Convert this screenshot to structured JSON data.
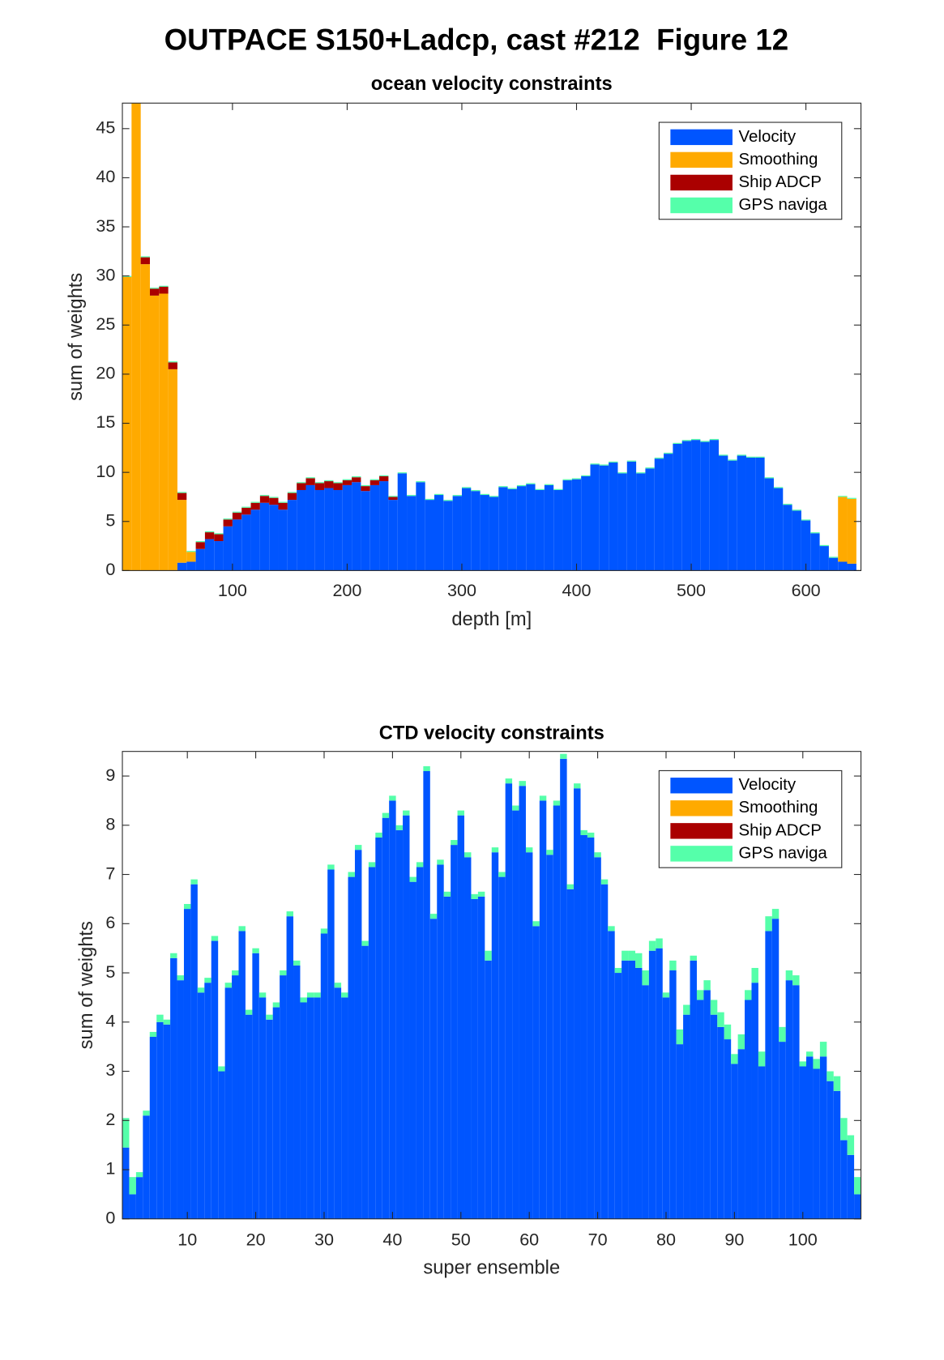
{
  "title": "OUTPACE S150+Ladcp, cast #212  Figure 12",
  "chart_data": [
    {
      "type": "bar",
      "stacked": true,
      "title": "ocean velocity constraints",
      "xlabel": "depth [m]",
      "ylabel": "sum of weights",
      "x": [
        8,
        16,
        24,
        32,
        40,
        48,
        56,
        64,
        72,
        80,
        88,
        96,
        104,
        112,
        120,
        128,
        136,
        144,
        152,
        160,
        168,
        176,
        184,
        192,
        200,
        208,
        216,
        224,
        232,
        240,
        248,
        256,
        264,
        272,
        280,
        288,
        296,
        304,
        312,
        320,
        328,
        336,
        344,
        352,
        360,
        368,
        376,
        384,
        392,
        400,
        408,
        416,
        424,
        432,
        440,
        448,
        456,
        464,
        472,
        480,
        488,
        496,
        504,
        512,
        520,
        528,
        536,
        544,
        552,
        560,
        568,
        576,
        584,
        592,
        600,
        608,
        616,
        624,
        632,
        640
      ],
      "xlim": [
        4,
        648
      ],
      "ylim": [
        0,
        47.6
      ],
      "xticks": [
        100,
        200,
        300,
        400,
        500,
        600
      ],
      "yticks": [
        0,
        5,
        10,
        15,
        20,
        25,
        30,
        35,
        40,
        45
      ],
      "legend": "northeast",
      "series": [
        {
          "name": "Velocity",
          "color": "#0055ff",
          "values": [
            0,
            0,
            0,
            0,
            0,
            0,
            0.8,
            0.9,
            2.2,
            3.2,
            3.0,
            4.5,
            5.2,
            5.7,
            6.2,
            6.9,
            6.7,
            6.2,
            7.2,
            8.2,
            8.7,
            8.2,
            8.4,
            8.2,
            8.7,
            9.0,
            8.1,
            8.7,
            9.1,
            7.2,
            9.9,
            7.6,
            9.0,
            7.2,
            7.7,
            7.1,
            7.6,
            8.4,
            8.1,
            7.7,
            7.5,
            8.5,
            8.3,
            8.6,
            8.8,
            8.2,
            8.7,
            8.2,
            9.2,
            9.3,
            9.6,
            10.8,
            10.7,
            11.0,
            9.9,
            11.1,
            9.9,
            10.4,
            11.4,
            11.9,
            12.9,
            13.2,
            13.3,
            13.1,
            13.3,
            11.7,
            11.2,
            11.7,
            11.5,
            11.5,
            9.4,
            8.4,
            6.7,
            6.1,
            5.1,
            3.8,
            2.5,
            1.3,
            0.9,
            0.7
          ]
        },
        {
          "name": "Smoothing",
          "color": "#ffaa00",
          "values": [
            29.9,
            47.9,
            31.2,
            28.0,
            28.2,
            20.5,
            6.4,
            1.0,
            0,
            0,
            0,
            0,
            0,
            0,
            0,
            0,
            0,
            0,
            0,
            0,
            0,
            0,
            0,
            0,
            0,
            0,
            0,
            0,
            0,
            0,
            0,
            0,
            0,
            0,
            0,
            0,
            0,
            0,
            0,
            0,
            0,
            0,
            0,
            0,
            0,
            0,
            0,
            0,
            0,
            0,
            0,
            0,
            0,
            0,
            0,
            0,
            0,
            0,
            0,
            0,
            0,
            0,
            0,
            0,
            0,
            0,
            0,
            0,
            0,
            0,
            0,
            0,
            0,
            0,
            0,
            0,
            0,
            0,
            6.6,
            6.6
          ]
        },
        {
          "name": "Ship ADCP",
          "color": "#aa0000",
          "values": [
            0,
            0,
            0.7,
            0.7,
            0.7,
            0.7,
            0.7,
            0,
            0.7,
            0.7,
            0.7,
            0.7,
            0.7,
            0.7,
            0.7,
            0.7,
            0.7,
            0.7,
            0.7,
            0.7,
            0.7,
            0.7,
            0.7,
            0.7,
            0.5,
            0.5,
            0.5,
            0.5,
            0.5,
            0.3,
            0,
            0,
            0,
            0,
            0,
            0,
            0,
            0,
            0,
            0,
            0,
            0,
            0,
            0,
            0,
            0,
            0,
            0,
            0,
            0,
            0,
            0,
            0,
            0,
            0,
            0,
            0,
            0,
            0,
            0,
            0,
            0,
            0,
            0,
            0,
            0,
            0,
            0,
            0,
            0,
            0,
            0,
            0,
            0,
            0,
            0,
            0,
            0,
            0,
            0
          ]
        },
        {
          "name": "GPS naviga",
          "color": "#55ffaa",
          "values": [
            0.1,
            0.1,
            0.1,
            0.1,
            0.1,
            0.1,
            0.1,
            0.1,
            0.1,
            0.1,
            0.1,
            0.1,
            0.1,
            0.1,
            0.1,
            0.1,
            0.1,
            0.1,
            0.1,
            0.1,
            0.1,
            0.1,
            0.1,
            0.1,
            0.1,
            0.1,
            0.1,
            0.1,
            0.1,
            0.1,
            0.1,
            0.1,
            0.1,
            0.1,
            0.1,
            0.1,
            0.1,
            0.1,
            0.1,
            0.1,
            0.1,
            0.1,
            0.1,
            0.1,
            0.1,
            0.1,
            0.1,
            0.1,
            0.1,
            0.1,
            0.1,
            0.1,
            0.1,
            0.1,
            0.1,
            0.1,
            0.1,
            0.1,
            0.1,
            0.1,
            0.1,
            0.1,
            0.1,
            0.1,
            0.1,
            0.1,
            0.1,
            0.1,
            0.1,
            0.1,
            0.1,
            0.1,
            0.1,
            0.1,
            0.1,
            0.1,
            0.1,
            0.1,
            0.1,
            0.1
          ]
        }
      ]
    },
    {
      "type": "bar",
      "stacked": true,
      "title": "CTD velocity constraints",
      "xlabel": "super ensemble",
      "ylabel": "sum of weights",
      "x": [
        1,
        2,
        3,
        4,
        5,
        6,
        7,
        8,
        9,
        10,
        11,
        12,
        13,
        14,
        15,
        16,
        17,
        18,
        19,
        20,
        21,
        22,
        23,
        24,
        25,
        26,
        27,
        28,
        29,
        30,
        31,
        32,
        33,
        34,
        35,
        36,
        37,
        38,
        39,
        40,
        41,
        42,
        43,
        44,
        45,
        46,
        47,
        48,
        49,
        50,
        51,
        52,
        53,
        54,
        55,
        56,
        57,
        58,
        59,
        60,
        61,
        62,
        63,
        64,
        65,
        66,
        67,
        68,
        69,
        70,
        71,
        72,
        73,
        74,
        75,
        76,
        77,
        78,
        79,
        80,
        81,
        82,
        83,
        84,
        85,
        86,
        87,
        88,
        89,
        90,
        91,
        92,
        93,
        94,
        95,
        96,
        97,
        98,
        99,
        100,
        101,
        102,
        103,
        104,
        105,
        106,
        107,
        108
      ],
      "xlim": [
        0.5,
        108.5
      ],
      "ylim": [
        0,
        9.5
      ],
      "xticks": [
        10,
        20,
        30,
        40,
        50,
        60,
        70,
        80,
        90,
        100
      ],
      "yticks": [
        0,
        1,
        2,
        3,
        4,
        5,
        6,
        7,
        8,
        9
      ],
      "legend": "northeast",
      "series": [
        {
          "name": "Velocity",
          "color": "#0055ff",
          "values": [
            1.45,
            0.5,
            0.85,
            2.1,
            3.7,
            4.0,
            3.95,
            5.3,
            4.85,
            6.3,
            6.8,
            4.6,
            4.8,
            5.65,
            3.0,
            4.7,
            4.95,
            5.85,
            4.15,
            5.4,
            4.5,
            4.05,
            4.3,
            4.95,
            6.15,
            5.15,
            4.4,
            4.5,
            4.5,
            5.8,
            7.1,
            4.7,
            4.5,
            6.95,
            7.5,
            5.55,
            7.15,
            7.75,
            8.15,
            8.5,
            7.9,
            8.2,
            6.85,
            7.15,
            9.1,
            6.1,
            7.2,
            6.55,
            7.6,
            8.2,
            7.35,
            6.5,
            6.55,
            5.25,
            7.45,
            6.95,
            8.85,
            8.3,
            8.8,
            7.45,
            5.95,
            8.5,
            7.4,
            8.4,
            9.35,
            6.7,
            8.75,
            7.8,
            7.75,
            7.35,
            6.8,
            5.85,
            5.0,
            5.25,
            5.25,
            5.1,
            4.75,
            5.45,
            5.5,
            4.5,
            5.05,
            3.55,
            4.15,
            5.25,
            4.45,
            4.65,
            4.15,
            3.9,
            3.65,
            3.15,
            3.45,
            4.45,
            4.8,
            3.1,
            5.85,
            6.1,
            3.6,
            4.85,
            4.75,
            3.1,
            3.3,
            3.05,
            3.3,
            2.8,
            2.6,
            1.6,
            1.3,
            0.5
          ]
        },
        {
          "name": "Smoothing",
          "color": "#ffaa00",
          "values": [
            0,
            0,
            0,
            0,
            0,
            0,
            0,
            0,
            0,
            0,
            0,
            0,
            0,
            0,
            0,
            0,
            0,
            0,
            0,
            0,
            0,
            0,
            0,
            0,
            0,
            0,
            0,
            0,
            0,
            0,
            0,
            0,
            0,
            0,
            0,
            0,
            0,
            0,
            0,
            0,
            0,
            0,
            0,
            0,
            0,
            0,
            0,
            0,
            0,
            0,
            0,
            0,
            0,
            0,
            0,
            0,
            0,
            0,
            0,
            0,
            0,
            0,
            0,
            0,
            0,
            0,
            0,
            0,
            0,
            0,
            0,
            0,
            0,
            0,
            0,
            0,
            0,
            0,
            0,
            0,
            0,
            0,
            0,
            0,
            0,
            0,
            0,
            0,
            0,
            0,
            0,
            0,
            0,
            0,
            0,
            0,
            0,
            0,
            0,
            0,
            0,
            0,
            0,
            0,
            0,
            0,
            0,
            0
          ]
        },
        {
          "name": "Ship ADCP",
          "color": "#aa0000",
          "values": [
            0,
            0,
            0,
            0,
            0,
            0,
            0,
            0,
            0,
            0,
            0,
            0,
            0,
            0,
            0,
            0,
            0,
            0,
            0,
            0,
            0,
            0,
            0,
            0,
            0,
            0,
            0,
            0,
            0,
            0,
            0,
            0,
            0,
            0,
            0,
            0,
            0,
            0,
            0,
            0,
            0,
            0,
            0,
            0,
            0,
            0,
            0,
            0,
            0,
            0,
            0,
            0,
            0,
            0,
            0,
            0,
            0,
            0,
            0,
            0,
            0,
            0,
            0,
            0,
            0,
            0,
            0,
            0,
            0,
            0,
            0,
            0,
            0,
            0,
            0,
            0,
            0,
            0,
            0,
            0,
            0,
            0,
            0,
            0,
            0,
            0,
            0,
            0,
            0,
            0,
            0,
            0,
            0,
            0,
            0,
            0,
            0,
            0,
            0,
            0,
            0,
            0,
            0,
            0,
            0,
            0,
            0,
            0
          ]
        },
        {
          "name": "GPS naviga",
          "color": "#55ffaa",
          "values": [
            0.6,
            0.35,
            0.1,
            0.1,
            0.1,
            0.15,
            0.1,
            0.1,
            0.1,
            0.1,
            0.1,
            0.1,
            0.1,
            0.1,
            0.1,
            0.1,
            0.1,
            0.1,
            0.1,
            0.1,
            0.1,
            0.1,
            0.1,
            0.1,
            0.1,
            0.1,
            0.1,
            0.1,
            0.1,
            0.1,
            0.1,
            0.1,
            0.1,
            0.1,
            0.1,
            0.1,
            0.1,
            0.1,
            0.1,
            0.1,
            0.1,
            0.1,
            0.1,
            0.1,
            0.1,
            0.1,
            0.1,
            0.1,
            0.1,
            0.1,
            0.1,
            0.1,
            0.1,
            0.2,
            0.1,
            0.1,
            0.1,
            0.1,
            0.1,
            0.1,
            0.1,
            0.1,
            0.1,
            0.1,
            0.1,
            0.1,
            0.1,
            0.1,
            0.1,
            0.1,
            0.1,
            0.1,
            0.1,
            0.2,
            0.2,
            0.3,
            0.3,
            0.2,
            0.2,
            0.1,
            0.2,
            0.3,
            0.2,
            0.1,
            0.2,
            0.2,
            0.3,
            0.3,
            0.3,
            0.2,
            0.3,
            0.2,
            0.3,
            0.3,
            0.3,
            0.2,
            0.3,
            0.2,
            0.2,
            0.1,
            0.1,
            0.2,
            0.3,
            0.2,
            0.3,
            0.45,
            0.4,
            0.35
          ]
        }
      ]
    }
  ]
}
